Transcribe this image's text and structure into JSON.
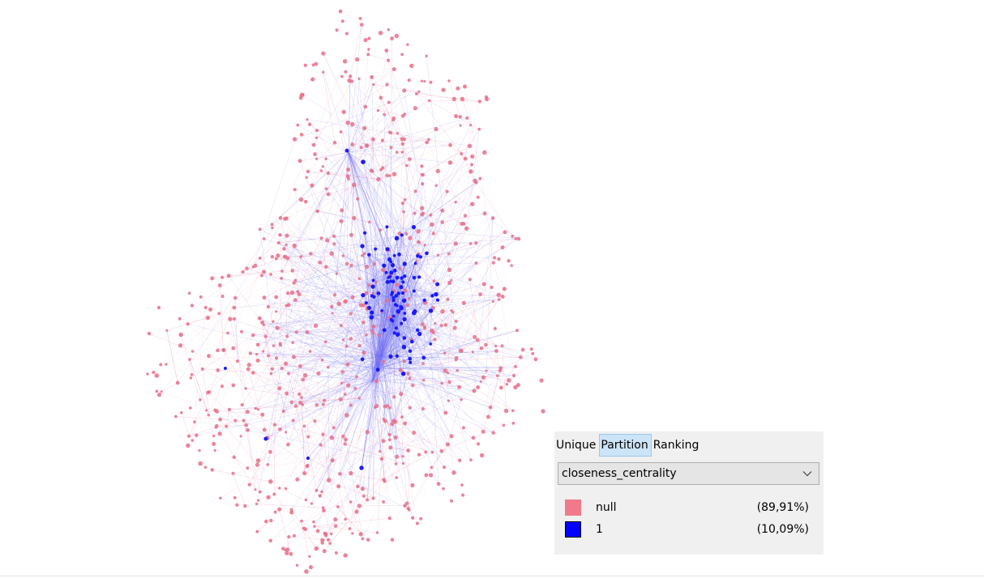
{
  "graph": {
    "colors": {
      "partition_null": "#e87088",
      "partition_1": "#1a1aff",
      "edge_pink": "#f29bb0",
      "edge_blue": "#6f6ff5"
    }
  },
  "appearance_panel": {
    "tabs": [
      {
        "label": "Unique",
        "selected": false
      },
      {
        "label": "Partition",
        "selected": true
      },
      {
        "label": "Ranking",
        "selected": false
      }
    ],
    "attribute_select": {
      "value": "closeness_centrality",
      "icon": "chevron-down-icon"
    },
    "legend": [
      {
        "label": "null",
        "percent": "(89,91%)",
        "color": "#f07a8c"
      },
      {
        "label": "1",
        "percent": "(10,09%)",
        "color": "#0000ff"
      }
    ]
  }
}
